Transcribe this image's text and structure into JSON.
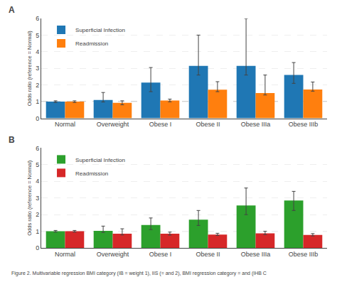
{
  "chart_data": [
    {
      "type": "bar",
      "title": "A",
      "categories": [
        "Normal",
        "Overweight",
        "Obese I",
        "Obese II",
        "Obese IIIa",
        "Obese IIIb"
      ],
      "series": [
        {
          "name": "Superficial Infection",
          "values": [
            1.0,
            1.1,
            2.15,
            3.15,
            3.15,
            2.6
          ],
          "error_low": [
            0.05,
            0.12,
            0.55,
            0.55,
            0.55,
            0.5
          ],
          "error_high": [
            0.05,
            0.45,
            0.9,
            1.85,
            2.85,
            0.75
          ]
        },
        {
          "name": "Readmission",
          "values": [
            1.0,
            0.93,
            1.07,
            1.72,
            1.52,
            1.73
          ],
          "error_low": [
            0.05,
            0.12,
            0.08,
            0.12,
            0.12,
            0.1
          ],
          "error_high": [
            0.05,
            0.12,
            0.08,
            0.48,
            1.08,
            0.45
          ]
        }
      ],
      "ylabel": "Odds ratio (reference = Normal)",
      "ylim": [
        0,
        6
      ],
      "yticks": [
        0,
        1,
        2,
        3,
        4,
        5,
        6
      ],
      "grid": true,
      "legend": "upper left",
      "reference_line": 1
    },
    {
      "type": "bar",
      "title": "B",
      "categories": [
        "Normal",
        "Overweight",
        "Obese I",
        "Obese II",
        "Obese IIIa",
        "Obese IIIb"
      ],
      "series": [
        {
          "name": "Superficial Infection",
          "values": [
            1.0,
            1.03,
            1.38,
            1.7,
            2.55,
            2.85
          ],
          "error_low": [
            0.05,
            0.1,
            0.28,
            0.35,
            0.55,
            0.6
          ],
          "error_high": [
            0.05,
            0.28,
            0.42,
            0.55,
            1.05,
            0.55
          ]
        },
        {
          "name": "Readmission",
          "values": [
            1.0,
            0.85,
            0.85,
            0.8,
            0.88,
            0.78
          ],
          "error_low": [
            0.05,
            0.07,
            0.08,
            0.05,
            0.08,
            0.06
          ],
          "error_high": [
            0.05,
            0.3,
            0.1,
            0.08,
            0.12,
            0.08
          ]
        }
      ],
      "ylabel": "Odds ratio (reference = Normal)",
      "ylim": [
        0,
        6
      ],
      "yticks": [
        0,
        1,
        2,
        3,
        4,
        5,
        6
      ],
      "grid": true,
      "legend": "upper left",
      "reference_line": 1,
      "annotations": [
        "Figure 2. Multivariable regression BMI category (IB = weight 1), IIS (= and 2), BMI regression category = and (IHB C"
      ]
    }
  ]
}
